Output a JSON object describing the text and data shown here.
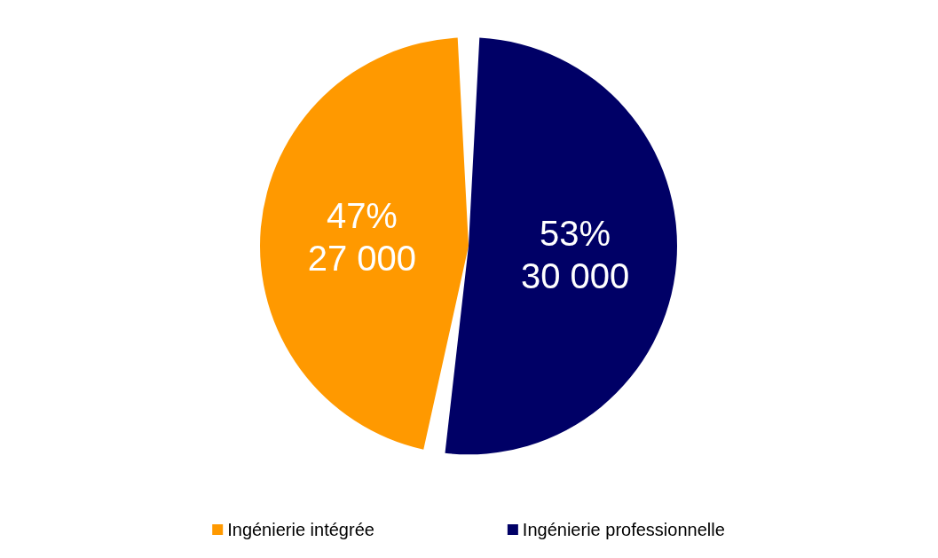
{
  "chart_data": {
    "type": "pie",
    "categories": [
      "Ingénierie intégrée",
      "Ingénierie professionnelle"
    ],
    "values": [
      27000,
      30000
    ],
    "colors": [
      "#ff9900",
      "#000066"
    ],
    "value_labels": [
      "47%\n27 000",
      "53%\n30 000"
    ],
    "legend": "bottom"
  }
}
